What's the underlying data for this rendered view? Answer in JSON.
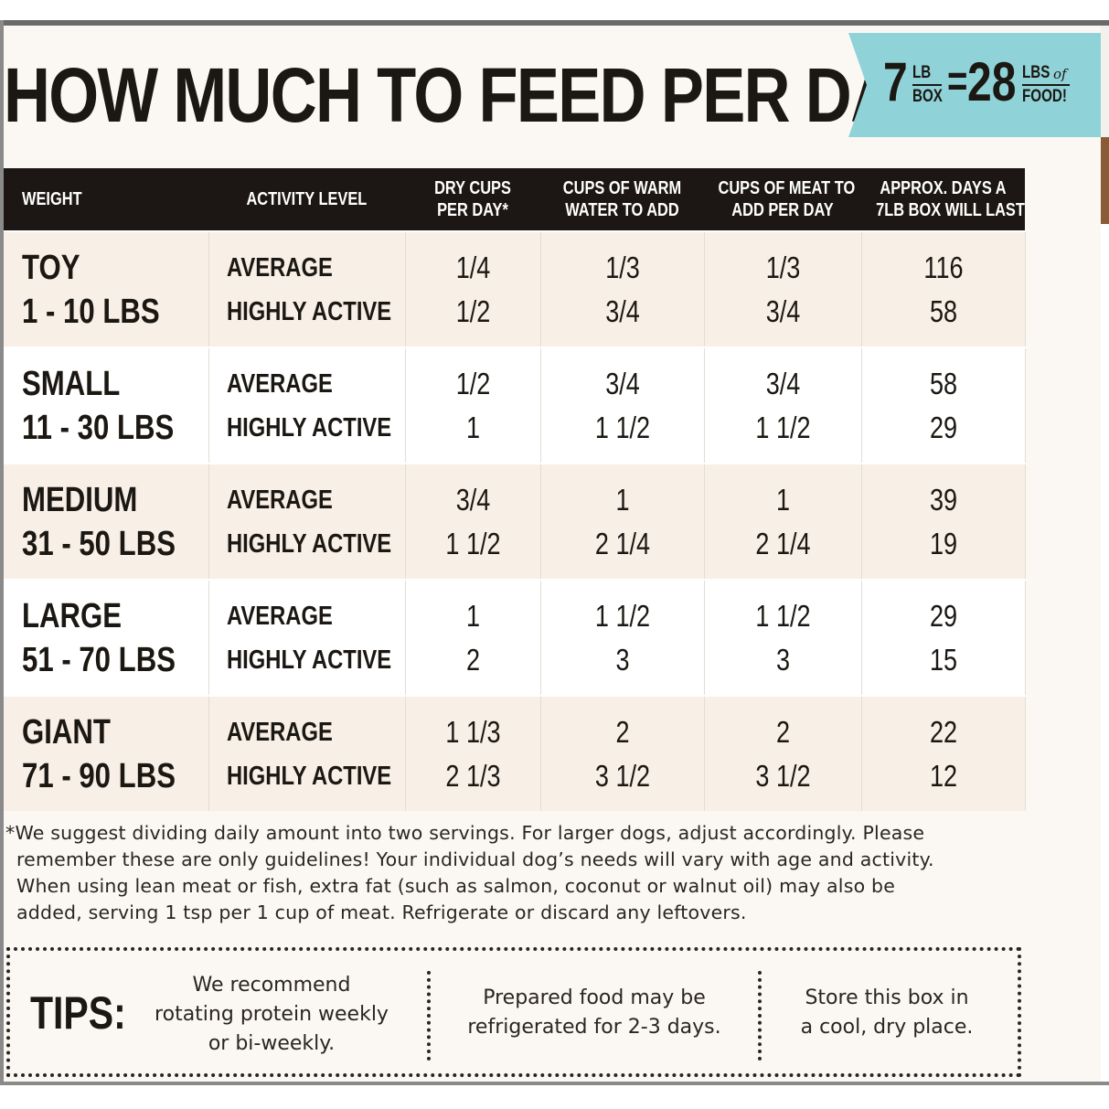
{
  "headline": "HOW MUCH TO FEED PER DAY",
  "ribbon": {
    "box_number": "7",
    "box_unit_top": "LB",
    "box_unit_bottom": "BOX",
    "equals": "=",
    "food_number": "28",
    "food_unit_top": "LBS",
    "food_of": "of",
    "food_unit_bottom": "FOOD!",
    "color": "#8fd3d8"
  },
  "table": {
    "headers": [
      [
        "WEIGHT"
      ],
      [
        "ACTIVITY LEVEL"
      ],
      [
        "DRY CUPS",
        "PER DAY*"
      ],
      [
        "CUPS OF WARM",
        "WATER TO ADD"
      ],
      [
        "CUPS OF MEAT TO",
        "ADD PER DAY"
      ],
      [
        "APPROX. DAYS A",
        "7LB BOX WILL LAST"
      ]
    ],
    "rows": [
      {
        "size": "TOY",
        "range": "1 - 10 LBS",
        "activity": [
          "AVERAGE",
          "HIGHLY ACTIVE"
        ],
        "dry": [
          "1/4",
          "1/2"
        ],
        "water": [
          "1/3",
          "3/4"
        ],
        "meat": [
          "1/3",
          "3/4"
        ],
        "days": [
          "116",
          "58"
        ]
      },
      {
        "size": "SMALL",
        "range": "11 - 30 LBS",
        "activity": [
          "AVERAGE",
          "HIGHLY ACTIVE"
        ],
        "dry": [
          "1/2",
          "1"
        ],
        "water": [
          "3/4",
          "1 1/2"
        ],
        "meat": [
          "3/4",
          "1 1/2"
        ],
        "days": [
          "58",
          "29"
        ]
      },
      {
        "size": "MEDIUM",
        "range": "31 - 50 LBS",
        "activity": [
          "AVERAGE",
          "HIGHLY ACTIVE"
        ],
        "dry": [
          "3/4",
          "1 1/2"
        ],
        "water": [
          "1",
          "2 1/4"
        ],
        "meat": [
          "1",
          "2 1/4"
        ],
        "days": [
          "39",
          "19"
        ]
      },
      {
        "size": "LARGE",
        "range": "51 - 70 LBS",
        "activity": [
          "AVERAGE",
          "HIGHLY ACTIVE"
        ],
        "dry": [
          "1",
          "2"
        ],
        "water": [
          "1 1/2",
          "3"
        ],
        "meat": [
          "1 1/2",
          "3"
        ],
        "days": [
          "29",
          "15"
        ]
      },
      {
        "size": "GIANT",
        "range": "71 - 90 LBS",
        "activity": [
          "AVERAGE",
          "HIGHLY ACTIVE"
        ],
        "dry": [
          "1 1/3",
          "2 1/3"
        ],
        "water": [
          "2",
          "3 1/2"
        ],
        "meat": [
          "2",
          "3 1/2"
        ],
        "days": [
          "22",
          "12"
        ]
      }
    ]
  },
  "footnote": [
    "*We suggest dividing daily amount into two servings. For larger dogs, adjust accordingly. Please",
    "remember these are only guidelines! Your individual dog’s needs will vary with age and activity.",
    "When using lean meat or fish, extra fat (such as salmon, coconut or walnut oil) may also be",
    "added, serving 1 tsp per 1 cup of meat. Refrigerate or discard any leftovers."
  ],
  "tips": {
    "label": "TIPS:",
    "items": [
      [
        "We recommend",
        "rotating protein weekly",
        "or bi-weekly."
      ],
      [
        "Prepared food may be",
        "refrigerated for 2-3 days."
      ],
      [
        "Store this box in",
        "a cool, dry place."
      ]
    ]
  }
}
